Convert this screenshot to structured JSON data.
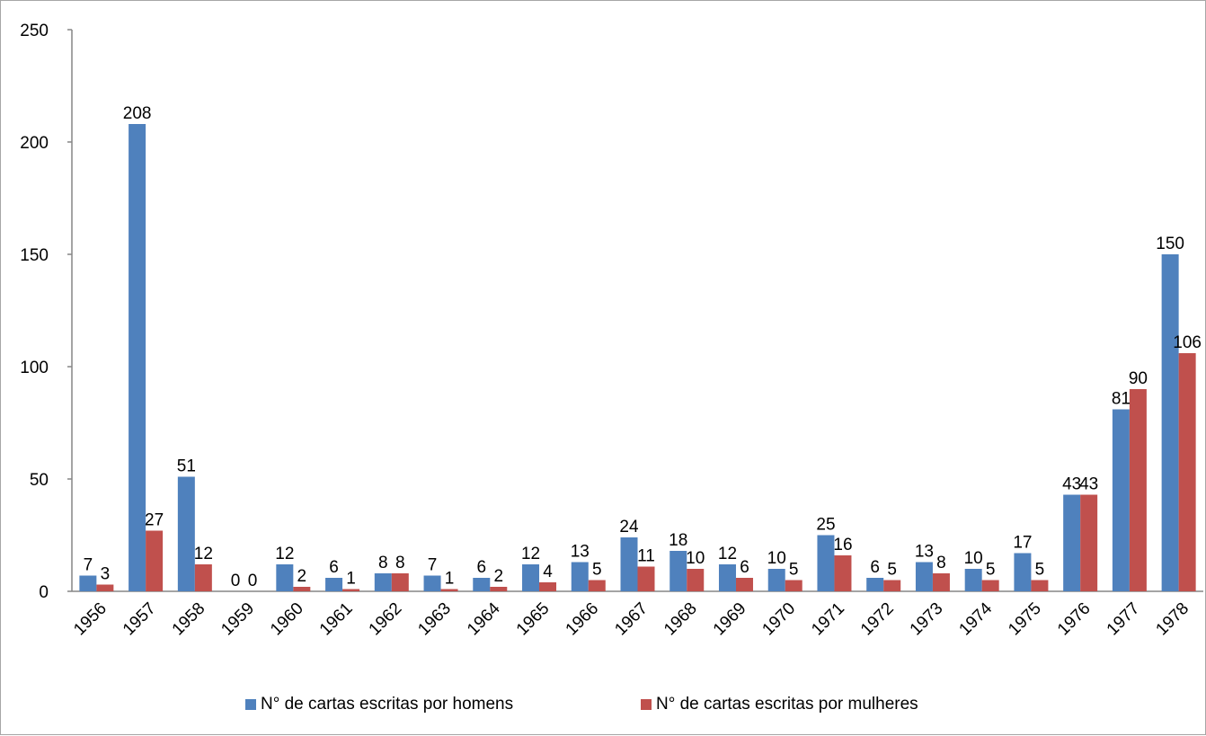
{
  "chart_data": {
    "type": "bar",
    "title": "",
    "xlabel": "",
    "ylabel": "",
    "ylim": [
      0,
      250
    ],
    "yticks": [
      0,
      50,
      100,
      150,
      200,
      250
    ],
    "grid": false,
    "legend_position": "bottom",
    "categories": [
      "1956",
      "1957",
      "1958",
      "1959",
      "1960",
      "1961",
      "1962",
      "1963",
      "1964",
      "1965",
      "1966",
      "1967",
      "1968",
      "1969",
      "1970",
      "1971",
      "1972",
      "1973",
      "1974",
      "1975",
      "1976",
      "1977",
      "1978"
    ],
    "series": [
      {
        "name": "N° de cartas escritas por homens",
        "color": "#4f81bd",
        "values": [
          7,
          208,
          51,
          0,
          12,
          6,
          8,
          7,
          6,
          12,
          13,
          24,
          18,
          12,
          10,
          25,
          6,
          13,
          10,
          17,
          43,
          81,
          150
        ]
      },
      {
        "name": "N° de cartas escritas por mulheres",
        "color": "#c0504d",
        "values": [
          3,
          27,
          12,
          0,
          2,
          1,
          8,
          1,
          2,
          4,
          5,
          11,
          10,
          6,
          5,
          16,
          5,
          8,
          5,
          5,
          43,
          90,
          106
        ]
      }
    ]
  }
}
